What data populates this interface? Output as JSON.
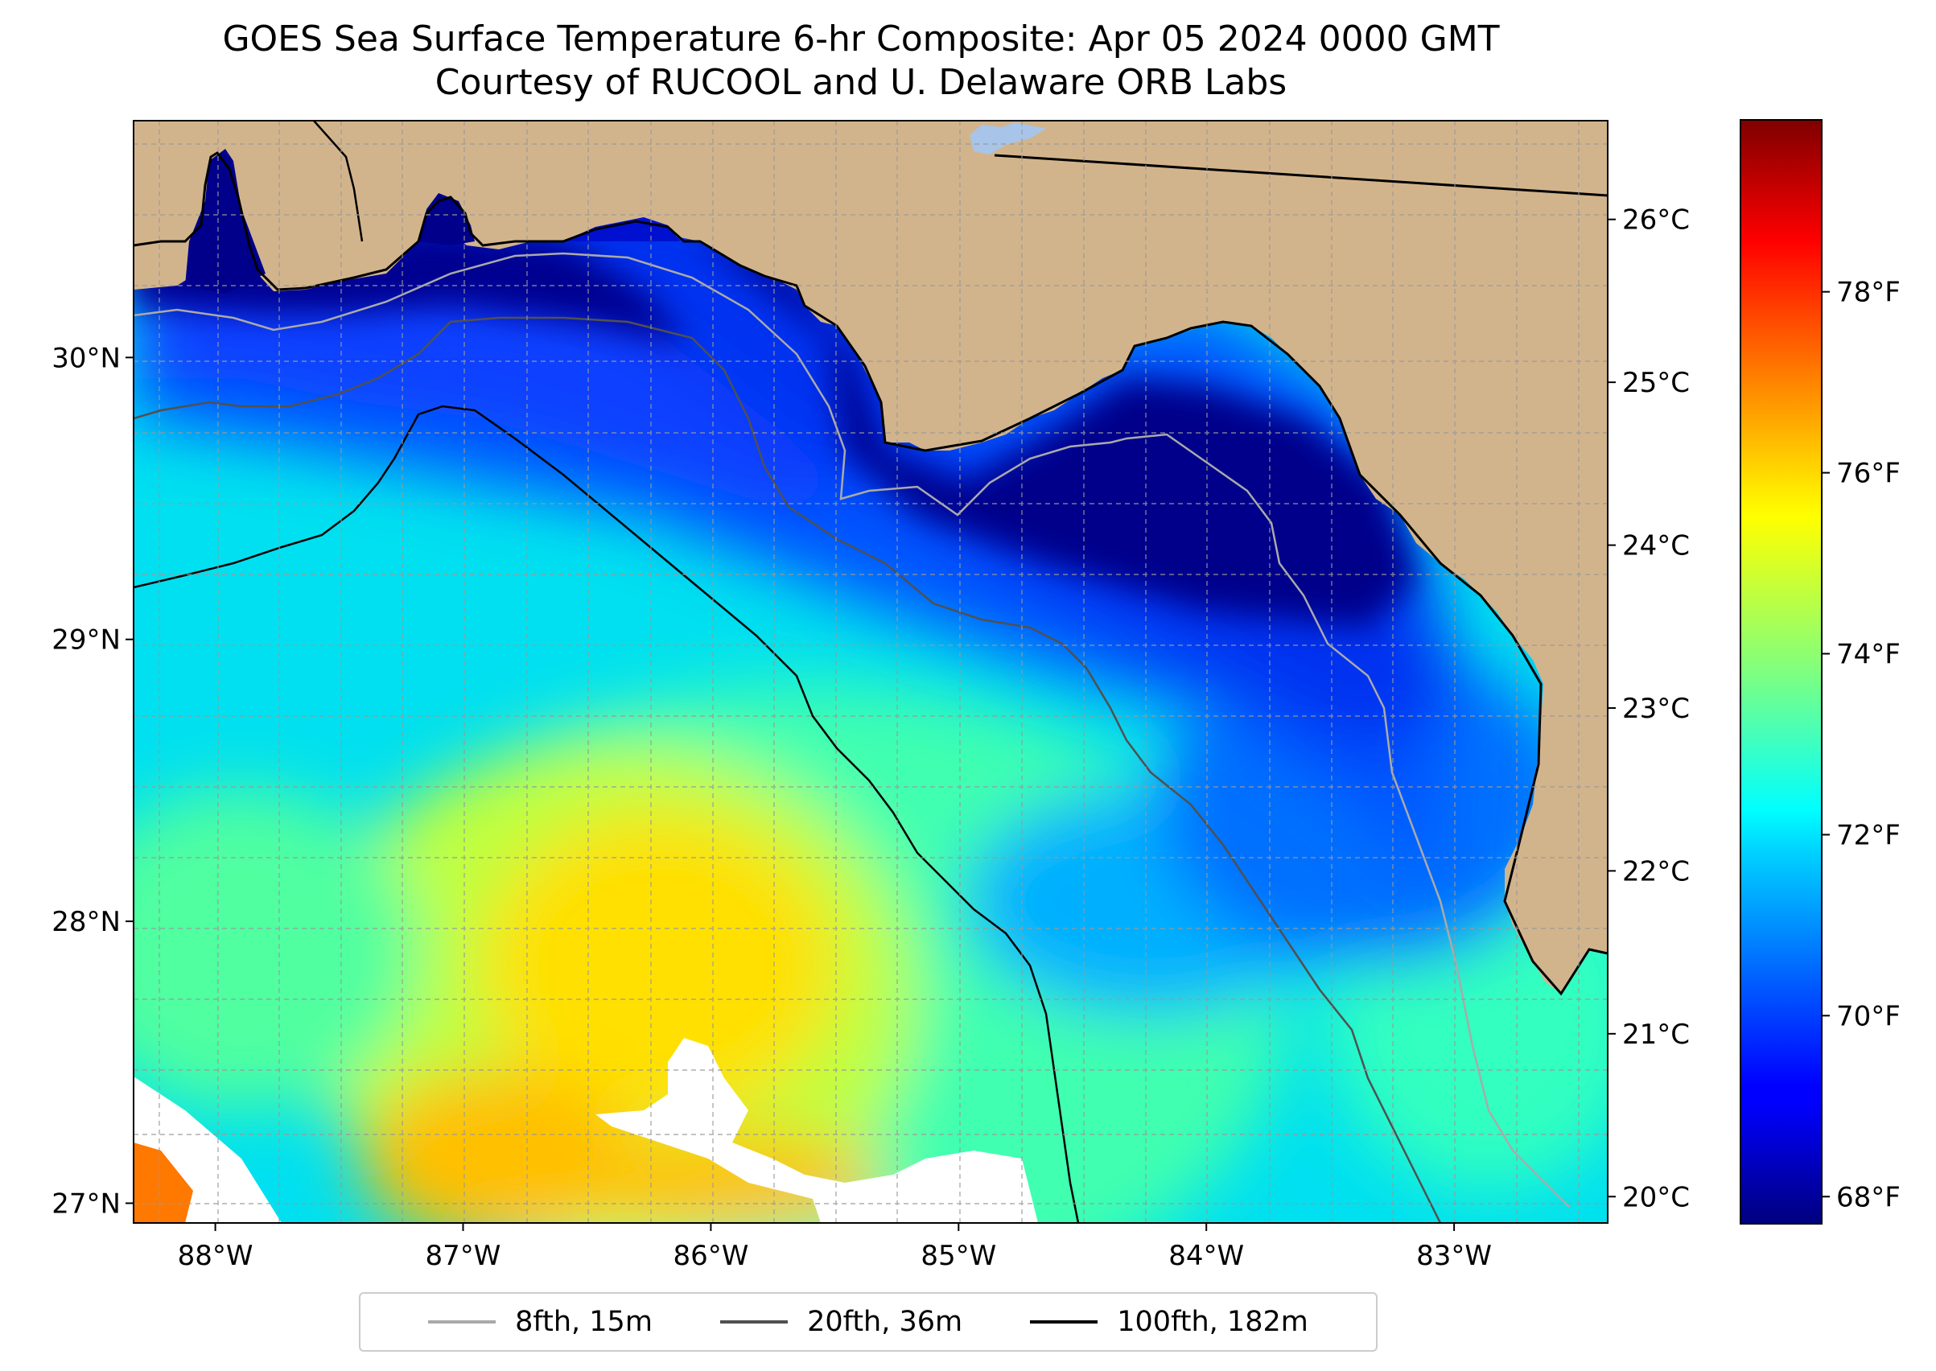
{
  "title": {
    "line1": "GOES Sea Surface Temperature 6-hr Composite: Apr 05 2024 0000 GMT",
    "line2": "Courtesy of RUCOOL and U. Delaware ORB Labs"
  },
  "map": {
    "lon_range": [
      -88.33,
      -82.38
    ],
    "lat_range": [
      26.93,
      30.84
    ],
    "lon_ticks": [
      {
        "value": -88,
        "label": "88°W"
      },
      {
        "value": -87,
        "label": "87°W"
      },
      {
        "value": -86,
        "label": "86°W"
      },
      {
        "value": -85,
        "label": "85°W"
      },
      {
        "value": -84,
        "label": "84°W"
      },
      {
        "value": -83,
        "label": "83°W"
      }
    ],
    "lat_ticks": [
      {
        "value": 30,
        "label": "30°N"
      },
      {
        "value": 29,
        "label": "29°N"
      },
      {
        "value": 28,
        "label": "28°N"
      },
      {
        "value": 27,
        "label": "27°N"
      }
    ],
    "gridlines": true,
    "land_color": "#d2b48c",
    "no_data_color": "#ffffff"
  },
  "colorbar": {
    "colormap": "jet",
    "range_f": [
      67.7,
      79.9
    ],
    "fahrenheit_ticks": [
      {
        "value": 68,
        "label": "68°F"
      },
      {
        "value": 70,
        "label": "70°F"
      },
      {
        "value": 72,
        "label": "72°F"
      },
      {
        "value": 74,
        "label": "74°F"
      },
      {
        "value": 76,
        "label": "76°F"
      },
      {
        "value": 78,
        "label": "78°F"
      }
    ],
    "celsius_ticks": [
      {
        "value": 20,
        "label": "20°C"
      },
      {
        "value": 21,
        "label": "21°C"
      },
      {
        "value": 22,
        "label": "22°C"
      },
      {
        "value": 23,
        "label": "23°C"
      },
      {
        "value": 24,
        "label": "24°C"
      },
      {
        "value": 25,
        "label": "25°C"
      },
      {
        "value": 26,
        "label": "26°C"
      }
    ]
  },
  "legend": {
    "items": [
      {
        "label": "8fth, 15m",
        "color": "#a9a9a9"
      },
      {
        "label": "20fth, 36m",
        "color": "#505050"
      },
      {
        "label": "100fth, 182m",
        "color": "#000000"
      }
    ]
  }
}
